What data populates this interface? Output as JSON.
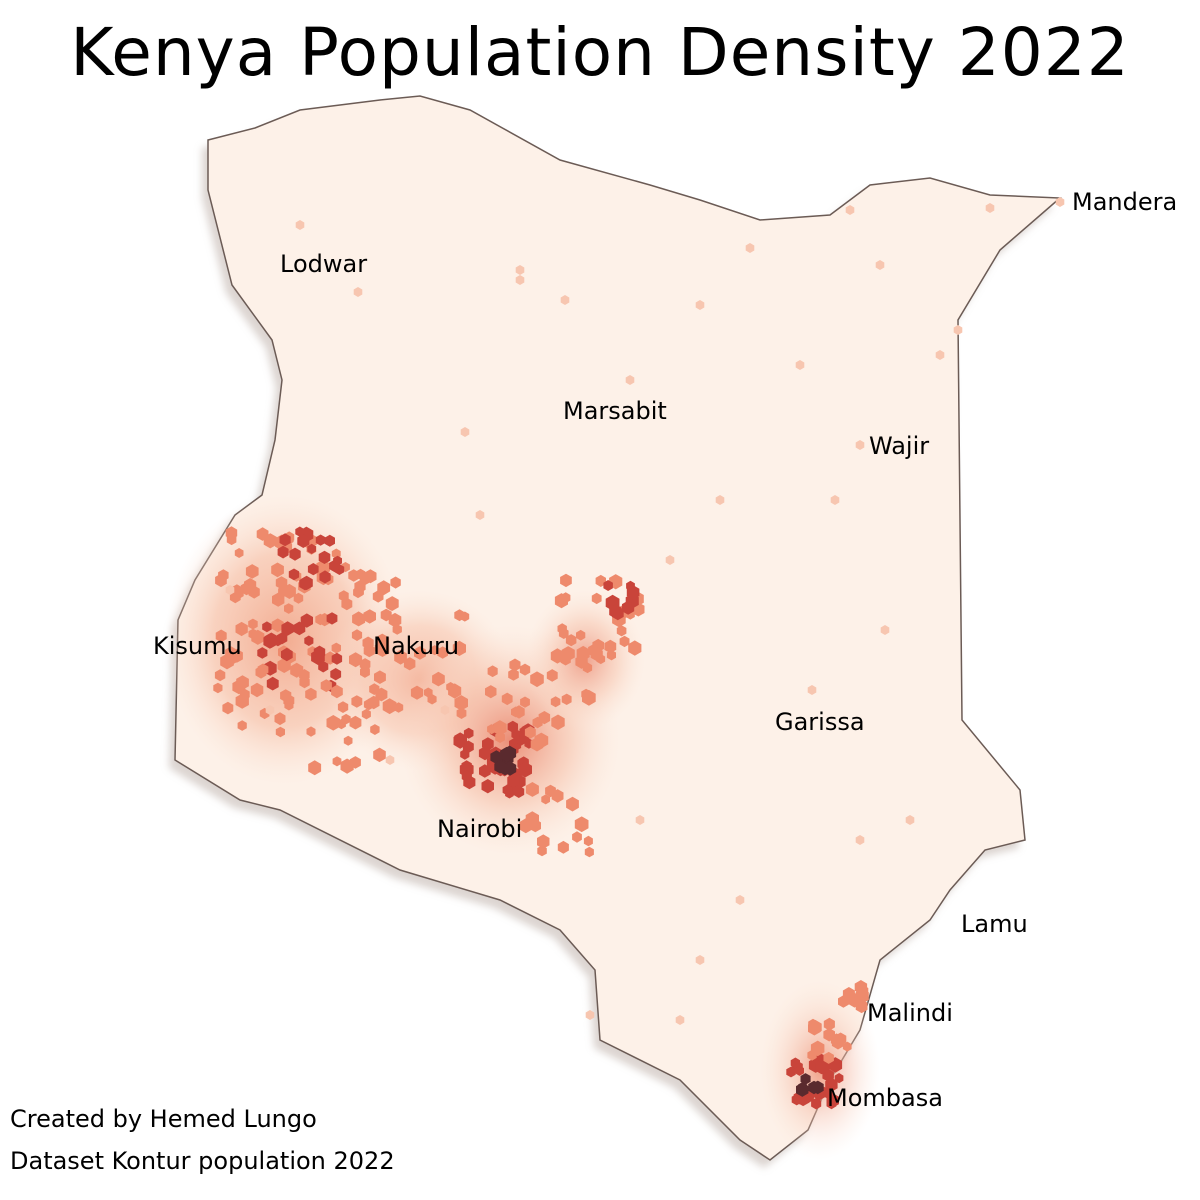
{
  "title": "Kenya  Population Density 2022",
  "cities": {
    "lodwar": "Lodwar",
    "mandera": "Mandera",
    "marsabit": "Marsabit",
    "wajir": "Wajir",
    "kisumu": "Kisumu",
    "nakuru": "Nakuru",
    "garissa": "Garissa",
    "nairobi": "Nairobi",
    "lamu": "Lamu",
    "malindi": "Malindi",
    "mombasa": "Mombasa"
  },
  "credits": {
    "author": "Created by Hemed Lungo",
    "dataset": "Dataset Kontur population 2022"
  },
  "colors": {
    "land": "#fdf1e8",
    "border": "#6b5b55",
    "low": "#f7c6b0",
    "mid": "#ee8a6c",
    "high": "#c9443a",
    "peak": "#5a2a2e"
  }
}
